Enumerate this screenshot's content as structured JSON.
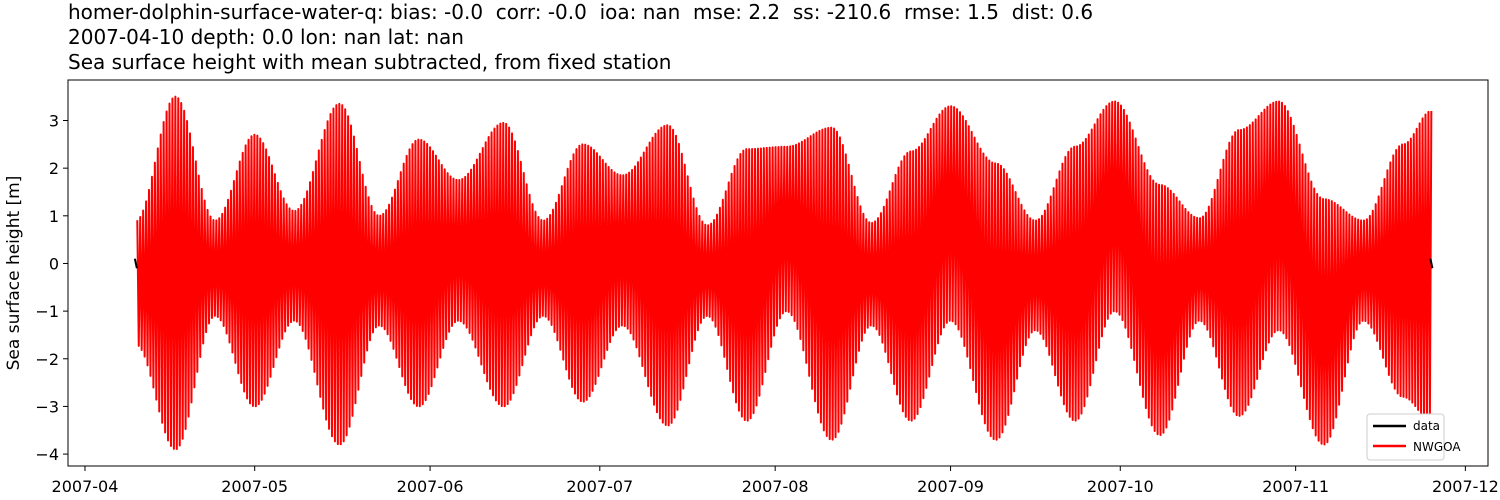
{
  "chart_data": {
    "type": "line",
    "title_lines": [
      "homer-dolphin-surface-water-q: bias: -0.0  corr: -0.0  ioa: nan  mse: 2.2  ss: -210.6  rmse: 1.5  dist: 0.6",
      "2007-04-10 depth: 0.0 lon: nan lat: nan",
      "Sea surface height with mean subtracted, from fixed station"
    ],
    "xlabel": "",
    "ylabel": "Sea surface height [m]",
    "x_range": [
      "2007-03-30",
      "2007-12-04"
    ],
    "xlim": [
      "2007-03-29",
      "2007-12-05"
    ],
    "ylim": [
      -4.25,
      3.85
    ],
    "x_ticks": [
      "2007-04",
      "2007-05",
      "2007-06",
      "2007-07",
      "2007-08",
      "2007-09",
      "2007-10",
      "2007-11",
      "2007-12"
    ],
    "y_ticks": [
      3,
      2,
      1,
      0,
      -1,
      -2,
      -3,
      -4
    ],
    "y_tick_labels": [
      "3",
      "2",
      "1",
      "0",
      "−1",
      "−2",
      "−3",
      "−4"
    ],
    "grid": false,
    "legend_position": "lower-right",
    "series": [
      {
        "name": "data",
        "color": "#000000",
        "x_range": [
          "2007-04-10",
          "2007-11-25"
        ],
        "values_note_hidden": true
      },
      {
        "name": "NWGOA",
        "color": "#ff0000",
        "x_range": [
          "2007-04-10",
          "2007-11-25"
        ],
        "envelope": {
          "dates": [
            "2007-04-10",
            "2007-04-17",
            "2007-04-24",
            "2007-05-01",
            "2007-05-08",
            "2007-05-16",
            "2007-05-23",
            "2007-05-30",
            "2007-06-06",
            "2007-06-14",
            "2007-06-21",
            "2007-06-28",
            "2007-07-05",
            "2007-07-13",
            "2007-07-20",
            "2007-07-27",
            "2007-08-03",
            "2007-08-11",
            "2007-08-18",
            "2007-08-25",
            "2007-09-01",
            "2007-09-09",
            "2007-09-16",
            "2007-09-23",
            "2007-09-30",
            "2007-10-08",
            "2007-10-15",
            "2007-10-22",
            "2007-10-29",
            "2007-11-06",
            "2007-11-13",
            "2007-11-20",
            "2007-11-25"
          ],
          "max": [
            0.9,
            3.5,
            0.9,
            2.7,
            1.1,
            3.35,
            1.0,
            2.6,
            1.75,
            2.95,
            0.9,
            2.5,
            1.85,
            2.9,
            0.8,
            2.4,
            2.45,
            2.85,
            0.85,
            2.35,
            3.3,
            2.1,
            0.9,
            2.45,
            3.4,
            1.65,
            0.95,
            2.8,
            3.4,
            1.35,
            0.9,
            2.5,
            3.2
          ],
          "min": [
            -1.7,
            -3.9,
            -1.1,
            -3.0,
            -1.2,
            -3.8,
            -1.3,
            -3.0,
            -1.2,
            -3.0,
            -1.1,
            -2.9,
            -1.3,
            -3.4,
            -1.1,
            -3.3,
            -1.0,
            -3.7,
            -1.3,
            -3.3,
            -1.2,
            -3.7,
            -1.4,
            -3.3,
            -1.0,
            -3.6,
            -1.2,
            -3.2,
            -1.4,
            -3.8,
            -1.2,
            -2.8,
            -3.3
          ]
        }
      }
    ]
  }
}
